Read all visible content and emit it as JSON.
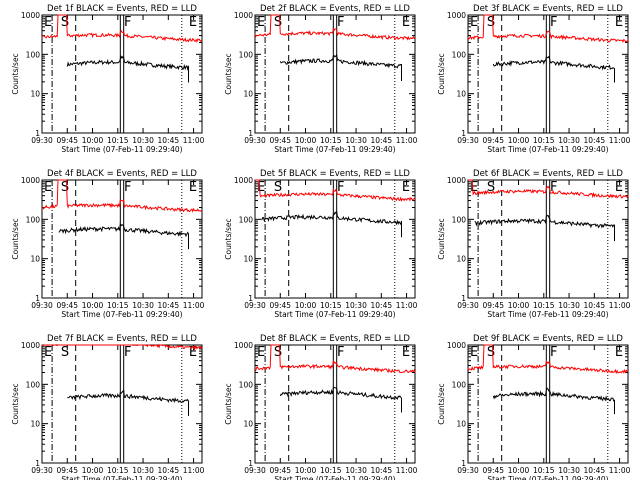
{
  "x_axis_label": "Start Time (07-Feb-11 09:29:40)",
  "y_axis_label": "Counts/sec",
  "x_tick_labels": [
    "09:30",
    "09:45",
    "10:00",
    "10:15",
    "10:30",
    "10:45",
    "11:00"
  ],
  "y_tick_labels": [
    "1",
    "10",
    "100",
    "1000"
  ],
  "colors": {
    "events": "#000000",
    "lld": "#ff0000",
    "axes": "#000000",
    "background": "#ffffff"
  },
  "chart_data": [
    {
      "type": "line",
      "title": "Det 1f BLACK = Events, RED = LLD",
      "ylog": true,
      "ylim": [
        1,
        1000
      ],
      "x_minutes_after_0930": [
        0,
        95
      ],
      "markers": [
        {
          "label": "E",
          "x": 0
        },
        {
          "label": "S",
          "x": 10
        },
        {
          "label": "F",
          "x": 47.5
        },
        {
          "label": "E",
          "x": 86
        }
      ],
      "series": [
        {
          "name": "Events",
          "color": "#000000",
          "x_range": [
            15,
            87
          ],
          "level": 55
        },
        {
          "name": "LLD",
          "color": "#ff0000",
          "x_range": [
            0,
            95
          ],
          "level": 270,
          "spike_at": 12
        }
      ]
    },
    {
      "type": "line",
      "title": "Det 2f BLACK = Events, RED = LLD",
      "ylog": true,
      "ylim": [
        1,
        1000
      ],
      "x_minutes_after_0930": [
        0,
        95
      ],
      "markers": [
        {
          "label": "E",
          "x": 0
        },
        {
          "label": "S",
          "x": 10
        },
        {
          "label": "F",
          "x": 47.5
        },
        {
          "label": "E",
          "x": 86
        }
      ],
      "series": [
        {
          "name": "Events",
          "color": "#000000",
          "x_range": [
            15,
            87
          ],
          "level": 60
        },
        {
          "name": "LLD",
          "color": "#ff0000",
          "x_range": [
            0,
            95
          ],
          "level": 300,
          "spike_at": 12
        }
      ]
    },
    {
      "type": "line",
      "title": "Det 3f BLACK = Events, RED = LLD",
      "ylog": true,
      "ylim": [
        1,
        1000
      ],
      "x_minutes_after_0930": [
        0,
        95
      ],
      "markers": [
        {
          "label": "E",
          "x": 0
        },
        {
          "label": "S",
          "x": 10
        },
        {
          "label": "F",
          "x": 47.5
        },
        {
          "label": "E",
          "x": 86
        }
      ],
      "series": [
        {
          "name": "Events",
          "color": "#000000",
          "x_range": [
            15,
            87
          ],
          "level": 55
        },
        {
          "name": "LLD",
          "color": "#ff0000",
          "x_range": [
            0,
            95
          ],
          "level": 260,
          "spike_at": 12
        }
      ]
    },
    {
      "type": "line",
      "title": "Det 4f BLACK = Events, RED = LLD",
      "ylog": true,
      "ylim": [
        1,
        1000
      ],
      "x_minutes_after_0930": [
        0,
        95
      ],
      "markers": [
        {
          "label": "E",
          "x": 0
        },
        {
          "label": "S",
          "x": 10
        },
        {
          "label": "F",
          "x": 47.5
        },
        {
          "label": "E",
          "x": 86
        }
      ],
      "series": [
        {
          "name": "Events",
          "color": "#000000",
          "x_range": [
            10,
            87
          ],
          "level": 50
        },
        {
          "name": "LLD",
          "color": "#ff0000",
          "x_range": [
            0,
            95
          ],
          "level": 200,
          "spike_at": 12
        }
      ]
    },
    {
      "type": "line",
      "title": "Det 5f BLACK = Events, RED = LLD",
      "ylog": true,
      "ylim": [
        1,
        1000
      ],
      "x_minutes_after_0930": [
        0,
        95
      ],
      "markers": [
        {
          "label": "E",
          "x": 0
        },
        {
          "label": "S",
          "x": 10
        },
        {
          "label": "F",
          "x": 47.5
        },
        {
          "label": "E",
          "x": 86
        }
      ],
      "series": [
        {
          "name": "Events",
          "color": "#000000",
          "x_range": [
            4,
            87
          ],
          "level": 100
        },
        {
          "name": "LLD",
          "color": "#ff0000",
          "x_range": [
            0,
            95
          ],
          "level": 380,
          "spike_at": 0
        }
      ]
    },
    {
      "type": "line",
      "title": "Det 6f BLACK = Events, RED = LLD",
      "ylog": true,
      "ylim": [
        1,
        1000
      ],
      "x_minutes_after_0930": [
        0,
        95
      ],
      "markers": [
        {
          "label": "E",
          "x": 0
        },
        {
          "label": "S",
          "x": 10
        },
        {
          "label": "F",
          "x": 47.5
        },
        {
          "label": "E",
          "x": 86
        }
      ],
      "series": [
        {
          "name": "Events",
          "color": "#000000",
          "x_range": [
            4,
            87
          ],
          "level": 80
        },
        {
          "name": "LLD",
          "color": "#ff0000",
          "x_range": [
            0,
            95
          ],
          "level": 450,
          "spike_at": 0
        }
      ]
    },
    {
      "type": "line",
      "title": "Det 7f BLACK = Events, RED = LLD",
      "ylog": true,
      "ylim": [
        1,
        1000
      ],
      "x_minutes_after_0930": [
        0,
        95
      ],
      "markers": [
        {
          "label": "E",
          "x": 0
        },
        {
          "label": "S",
          "x": 10
        },
        {
          "label": "F",
          "x": 47.5
        },
        {
          "label": "E",
          "x": 86
        }
      ],
      "series": [
        {
          "name": "Events",
          "color": "#000000",
          "x_range": [
            15,
            87
          ],
          "level": 45
        },
        {
          "name": "LLD",
          "color": "#ff0000",
          "x_range": [
            0,
            95
          ],
          "level": 1000,
          "spike_at": 12
        }
      ]
    },
    {
      "type": "line",
      "title": "Det 8f BLACK = Events, RED = LLD",
      "ylog": true,
      "ylim": [
        1,
        1000
      ],
      "x_minutes_after_0930": [
        0,
        95
      ],
      "markers": [
        {
          "label": "E",
          "x": 0
        },
        {
          "label": "S",
          "x": 10
        },
        {
          "label": "F",
          "x": 47.5
        },
        {
          "label": "E",
          "x": 86
        }
      ],
      "series": [
        {
          "name": "Events",
          "color": "#000000",
          "x_range": [
            15,
            87
          ],
          "level": 55
        },
        {
          "name": "LLD",
          "color": "#ff0000",
          "x_range": [
            0,
            95
          ],
          "level": 250,
          "spike_at": 12
        }
      ]
    },
    {
      "type": "line",
      "title": "Det 9f BLACK = Events, RED = LLD",
      "ylog": true,
      "ylim": [
        1,
        1000
      ],
      "x_minutes_after_0930": [
        0,
        95
      ],
      "markers": [
        {
          "label": "E",
          "x": 0
        },
        {
          "label": "S",
          "x": 10
        },
        {
          "label": "F",
          "x": 47.5
        },
        {
          "label": "E",
          "x": 86
        }
      ],
      "series": [
        {
          "name": "Events",
          "color": "#000000",
          "x_range": [
            15,
            87
          ],
          "level": 50
        },
        {
          "name": "LLD",
          "color": "#ff0000",
          "x_range": [
            0,
            95
          ],
          "level": 250,
          "spike_at": 12
        }
      ]
    }
  ]
}
